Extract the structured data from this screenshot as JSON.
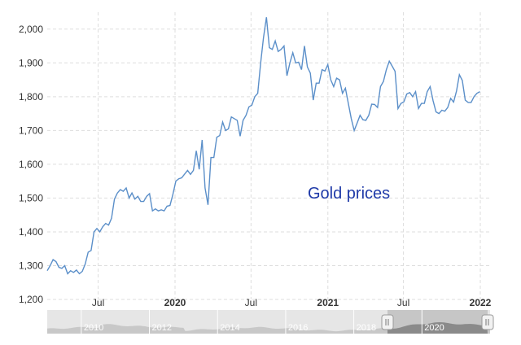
{
  "chart_data": {
    "type": "line",
    "title": "",
    "xlabel": "",
    "ylabel": "",
    "annotation": "Gold prices",
    "annotation_color": "#1f3aa8",
    "line_color": "#5b8fc9",
    "grid": true,
    "x_range": [
      "2019-03-01",
      "2021-12-31"
    ],
    "ylim": [
      1200,
      2050
    ],
    "y_ticks": [
      {
        "value": 1200,
        "label": "1,200"
      },
      {
        "value": 1300,
        "label": "1,300"
      },
      {
        "value": 1400,
        "label": "1,400"
      },
      {
        "value": 1500,
        "label": "1,500"
      },
      {
        "value": 1600,
        "label": "1,600"
      },
      {
        "value": 1700,
        "label": "1,700"
      },
      {
        "value": 1800,
        "label": "1,800"
      },
      {
        "value": 1900,
        "label": "1,900"
      },
      {
        "value": 2000,
        "label": "2,000"
      }
    ],
    "x_ticks": [
      {
        "date": "2019-07-01",
        "label": "Jul",
        "bold": false
      },
      {
        "date": "2020-01-01",
        "label": "2020",
        "bold": true
      },
      {
        "date": "2020-07-01",
        "label": "Jul",
        "bold": false
      },
      {
        "date": "2021-01-01",
        "label": "2021",
        "bold": true
      },
      {
        "date": "2021-07-01",
        "label": "Jul",
        "bold": false
      },
      {
        "date": "2022-01-01",
        "label": "2022",
        "bold": true
      }
    ],
    "series": [
      {
        "name": "",
        "points": [
          [
            "2019-03-01",
            1285
          ],
          [
            "2019-03-08",
            1300
          ],
          [
            "2019-03-15",
            1318
          ],
          [
            "2019-03-22",
            1312
          ],
          [
            "2019-03-29",
            1295
          ],
          [
            "2019-04-05",
            1292
          ],
          [
            "2019-04-12",
            1300
          ],
          [
            "2019-04-19",
            1276
          ],
          [
            "2019-04-26",
            1285
          ],
          [
            "2019-05-03",
            1280
          ],
          [
            "2019-05-10",
            1287
          ],
          [
            "2019-05-17",
            1276
          ],
          [
            "2019-05-24",
            1283
          ],
          [
            "2019-05-31",
            1305
          ],
          [
            "2019-06-07",
            1340
          ],
          [
            "2019-06-14",
            1345
          ],
          [
            "2019-06-21",
            1400
          ],
          [
            "2019-06-28",
            1410
          ],
          [
            "2019-07-05",
            1400
          ],
          [
            "2019-07-12",
            1415
          ],
          [
            "2019-07-19",
            1425
          ],
          [
            "2019-07-26",
            1420
          ],
          [
            "2019-08-02",
            1440
          ],
          [
            "2019-08-09",
            1497
          ],
          [
            "2019-08-16",
            1515
          ],
          [
            "2019-08-23",
            1525
          ],
          [
            "2019-08-30",
            1520
          ],
          [
            "2019-09-06",
            1530
          ],
          [
            "2019-09-13",
            1500
          ],
          [
            "2019-09-20",
            1515
          ],
          [
            "2019-09-27",
            1497
          ],
          [
            "2019-10-04",
            1505
          ],
          [
            "2019-10-11",
            1490
          ],
          [
            "2019-10-18",
            1490
          ],
          [
            "2019-10-25",
            1505
          ],
          [
            "2019-11-01",
            1513
          ],
          [
            "2019-11-08",
            1462
          ],
          [
            "2019-11-15",
            1468
          ],
          [
            "2019-11-22",
            1462
          ],
          [
            "2019-11-29",
            1465
          ],
          [
            "2019-12-06",
            1462
          ],
          [
            "2019-12-13",
            1476
          ],
          [
            "2019-12-20",
            1478
          ],
          [
            "2019-12-27",
            1511
          ],
          [
            "2020-01-03",
            1550
          ],
          [
            "2020-01-10",
            1557
          ],
          [
            "2020-01-17",
            1560
          ],
          [
            "2020-01-24",
            1571
          ],
          [
            "2020-01-31",
            1582
          ],
          [
            "2020-02-07",
            1570
          ],
          [
            "2020-02-14",
            1582
          ],
          [
            "2020-02-21",
            1640
          ],
          [
            "2020-02-28",
            1585
          ],
          [
            "2020-03-06",
            1672
          ],
          [
            "2020-03-13",
            1530
          ],
          [
            "2020-03-20",
            1480
          ],
          [
            "2020-03-27",
            1620
          ],
          [
            "2020-04-03",
            1620
          ],
          [
            "2020-04-10",
            1680
          ],
          [
            "2020-04-17",
            1685
          ],
          [
            "2020-04-24",
            1725
          ],
          [
            "2020-05-01",
            1700
          ],
          [
            "2020-05-08",
            1705
          ],
          [
            "2020-05-15",
            1740
          ],
          [
            "2020-05-22",
            1735
          ],
          [
            "2020-05-29",
            1730
          ],
          [
            "2020-06-05",
            1683
          ],
          [
            "2020-06-12",
            1730
          ],
          [
            "2020-06-19",
            1745
          ],
          [
            "2020-06-26",
            1770
          ],
          [
            "2020-07-03",
            1775
          ],
          [
            "2020-07-10",
            1800
          ],
          [
            "2020-07-17",
            1810
          ],
          [
            "2020-07-24",
            1900
          ],
          [
            "2020-07-31",
            1975
          ],
          [
            "2020-08-07",
            2035
          ],
          [
            "2020-08-14",
            1945
          ],
          [
            "2020-08-21",
            1940
          ],
          [
            "2020-08-28",
            1965
          ],
          [
            "2020-09-04",
            1934
          ],
          [
            "2020-09-11",
            1940
          ],
          [
            "2020-09-18",
            1950
          ],
          [
            "2020-09-25",
            1862
          ],
          [
            "2020-10-02",
            1900
          ],
          [
            "2020-10-09",
            1930
          ],
          [
            "2020-10-16",
            1900
          ],
          [
            "2020-10-23",
            1902
          ],
          [
            "2020-10-30",
            1880
          ],
          [
            "2020-11-06",
            1950
          ],
          [
            "2020-11-13",
            1888
          ],
          [
            "2020-11-20",
            1870
          ],
          [
            "2020-11-27",
            1790
          ],
          [
            "2020-12-04",
            1840
          ],
          [
            "2020-12-11",
            1840
          ],
          [
            "2020-12-18",
            1880
          ],
          [
            "2020-12-25",
            1876
          ],
          [
            "2021-01-01",
            1895
          ],
          [
            "2021-01-08",
            1850
          ],
          [
            "2021-01-15",
            1830
          ],
          [
            "2021-01-22",
            1855
          ],
          [
            "2021-01-29",
            1850
          ],
          [
            "2021-02-05",
            1810
          ],
          [
            "2021-02-12",
            1825
          ],
          [
            "2021-02-19",
            1780
          ],
          [
            "2021-02-26",
            1735
          ],
          [
            "2021-03-05",
            1700
          ],
          [
            "2021-03-12",
            1722
          ],
          [
            "2021-03-19",
            1745
          ],
          [
            "2021-03-26",
            1732
          ],
          [
            "2021-04-02",
            1730
          ],
          [
            "2021-04-09",
            1745
          ],
          [
            "2021-04-16",
            1778
          ],
          [
            "2021-04-23",
            1777
          ],
          [
            "2021-04-30",
            1768
          ],
          [
            "2021-05-07",
            1830
          ],
          [
            "2021-05-14",
            1845
          ],
          [
            "2021-05-21",
            1880
          ],
          [
            "2021-05-28",
            1905
          ],
          [
            "2021-06-04",
            1890
          ],
          [
            "2021-06-11",
            1875
          ],
          [
            "2021-06-18",
            1765
          ],
          [
            "2021-06-25",
            1780
          ],
          [
            "2021-07-02",
            1785
          ],
          [
            "2021-07-09",
            1808
          ],
          [
            "2021-07-16",
            1812
          ],
          [
            "2021-07-23",
            1800
          ],
          [
            "2021-07-30",
            1815
          ],
          [
            "2021-08-06",
            1765
          ],
          [
            "2021-08-13",
            1780
          ],
          [
            "2021-08-20",
            1780
          ],
          [
            "2021-08-27",
            1815
          ],
          [
            "2021-09-03",
            1830
          ],
          [
            "2021-09-10",
            1788
          ],
          [
            "2021-09-17",
            1755
          ],
          [
            "2021-09-24",
            1750
          ],
          [
            "2021-10-01",
            1760
          ],
          [
            "2021-10-08",
            1757
          ],
          [
            "2021-10-15",
            1768
          ],
          [
            "2021-10-22",
            1795
          ],
          [
            "2021-10-29",
            1784
          ],
          [
            "2021-11-05",
            1817
          ],
          [
            "2021-11-12",
            1865
          ],
          [
            "2021-11-19",
            1848
          ],
          [
            "2021-11-26",
            1790
          ],
          [
            "2021-12-03",
            1783
          ],
          [
            "2021-12-10",
            1783
          ],
          [
            "2021-12-17",
            1800
          ],
          [
            "2021-12-24",
            1810
          ],
          [
            "2021-12-31",
            1815
          ]
        ]
      }
    ]
  },
  "navigator": {
    "labels": [
      "2010",
      "2012",
      "2014",
      "2016",
      "2018",
      "2020"
    ],
    "fill_color": "#c8c8c8",
    "selected_fill_color": "#8a8a8a",
    "window": [
      "2019-03-01",
      "2021-12-31"
    ],
    "handle_left_icon": "grip-lines-icon",
    "handle_right_icon": "grip-lines-icon"
  }
}
